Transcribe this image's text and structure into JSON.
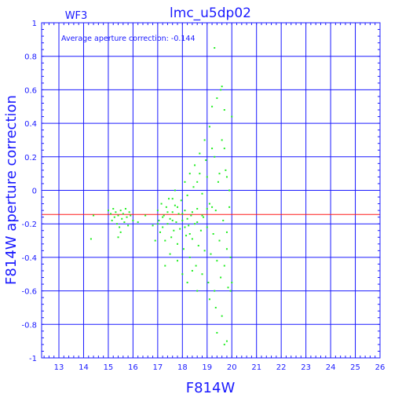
{
  "title": "lmc_u5dp02",
  "panel_label": "WF3",
  "annotation": "Average aperture correction: -0.144",
  "colors": {
    "axis": "#1a1aff",
    "points": "#22ee22",
    "average_line": "#ff1a1a",
    "background": "#ffffff"
  },
  "chart_data": {
    "type": "scatter",
    "title": "lmc_u5dp02",
    "xlabel": "F814W",
    "ylabel": "F814W aperture correction",
    "xlim": [
      12.3,
      26
    ],
    "ylim": [
      -1,
      1
    ],
    "x_ticks": [
      13,
      14,
      15,
      16,
      17,
      18,
      19,
      20,
      21,
      22,
      23,
      24,
      25,
      26
    ],
    "y_ticks": [
      -1,
      -0.8,
      -0.6,
      -0.4,
      -0.2,
      0,
      0.2,
      0.4,
      0.6,
      0.8,
      1
    ],
    "grid": true,
    "average_line": -0.144,
    "series": [
      {
        "points": [
          [
            14.3,
            -0.29
          ],
          [
            14.4,
            -0.15
          ],
          [
            15.0,
            -0.12
          ],
          [
            15.1,
            -0.14
          ],
          [
            15.15,
            -0.18
          ],
          [
            15.2,
            -0.11
          ],
          [
            15.25,
            -0.16
          ],
          [
            15.3,
            -0.13
          ],
          [
            15.35,
            -0.2
          ],
          [
            15.4,
            -0.15
          ],
          [
            15.45,
            -0.22
          ],
          [
            15.5,
            -0.12
          ],
          [
            15.55,
            -0.17
          ],
          [
            15.6,
            -0.14
          ],
          [
            15.65,
            -0.19
          ],
          [
            15.7,
            -0.11
          ],
          [
            15.75,
            -0.16
          ],
          [
            15.8,
            -0.21
          ],
          [
            15.85,
            -0.13
          ],
          [
            15.9,
            -0.15
          ],
          [
            16.0,
            -0.18
          ],
          [
            15.4,
            -0.28
          ],
          [
            15.5,
            -0.25
          ],
          [
            16.2,
            -0.19
          ],
          [
            16.5,
            -0.15
          ],
          [
            16.8,
            -0.21
          ],
          [
            17.0,
            -0.12
          ],
          [
            17.05,
            -0.18
          ],
          [
            17.1,
            -0.25
          ],
          [
            17.15,
            -0.08
          ],
          [
            17.2,
            -0.22
          ],
          [
            17.25,
            -0.15
          ],
          [
            17.3,
            -0.3
          ],
          [
            17.35,
            -0.1
          ],
          [
            17.4,
            -0.2
          ],
          [
            17.45,
            -0.05
          ],
          [
            17.5,
            -0.17
          ],
          [
            17.55,
            -0.28
          ],
          [
            17.6,
            -0.13
          ],
          [
            17.65,
            -0.24
          ],
          [
            17.7,
            -0.09
          ],
          [
            17.75,
            -0.19
          ],
          [
            17.8,
            -0.32
          ],
          [
            17.85,
            -0.14
          ],
          [
            17.9,
            -0.23
          ],
          [
            17.95,
            -0.06
          ],
          [
            18.0,
            -0.18
          ],
          [
            18.05,
            -0.35
          ],
          [
            18.1,
            -0.12
          ],
          [
            18.15,
            -0.27
          ],
          [
            18.2,
            -0.03
          ],
          [
            18.25,
            -0.21
          ],
          [
            18.3,
            -0.4
          ],
          [
            18.35,
            -0.15
          ],
          [
            18.4,
            -0.29
          ],
          [
            18.45,
            0.02
          ],
          [
            18.5,
            -0.2
          ],
          [
            18.55,
            -0.45
          ],
          [
            18.6,
            -0.11
          ],
          [
            18.65,
            -0.33
          ],
          [
            18.7,
            0.1
          ],
          [
            18.75,
            -0.24
          ],
          [
            18.8,
            -0.5
          ],
          [
            18.85,
            -0.16
          ],
          [
            18.9,
            -0.36
          ],
          [
            18.95,
            0.18
          ],
          [
            19.0,
            -0.22
          ],
          [
            19.05,
            -0.55
          ],
          [
            19.1,
            -0.08
          ],
          [
            19.15,
            -0.38
          ],
          [
            19.2,
            0.25
          ],
          [
            19.25,
            -0.26
          ],
          [
            19.3,
            -0.6
          ],
          [
            19.35,
            -0.12
          ],
          [
            19.4,
            -0.42
          ],
          [
            19.45,
            0.05
          ],
          [
            19.5,
            -0.3
          ],
          [
            19.55,
            -0.52
          ],
          [
            19.6,
            0.3
          ],
          [
            19.65,
            -0.18
          ],
          [
            19.7,
            -0.45
          ],
          [
            19.75,
            0.12
          ],
          [
            19.8,
            -0.35
          ],
          [
            19.85,
            -0.58
          ],
          [
            19.9,
            -0.1
          ],
          [
            19.95,
            -0.4
          ],
          [
            17.5,
            -0.38
          ],
          [
            17.8,
            -0.42
          ],
          [
            18.0,
            -0.5
          ],
          [
            18.2,
            -0.55
          ],
          [
            18.4,
            -0.48
          ],
          [
            18.6,
            -0.6
          ],
          [
            18.1,
            0.05
          ],
          [
            18.3,
            0.1
          ],
          [
            18.5,
            0.15
          ],
          [
            18.7,
            0.22
          ],
          [
            18.9,
            0.3
          ],
          [
            19.1,
            0.38
          ],
          [
            19.3,
            0.2
          ],
          [
            19.5,
            0.1
          ],
          [
            19.7,
            0.25
          ],
          [
            19.9,
            0.0
          ],
          [
            19.2,
            0.5
          ],
          [
            19.4,
            0.55
          ],
          [
            19.6,
            0.62
          ],
          [
            19.55,
            0.6
          ],
          [
            19.3,
            0.85
          ],
          [
            19.7,
            0.48
          ],
          [
            20.0,
            0.44
          ],
          [
            19.8,
            -0.25
          ],
          [
            19.1,
            -0.65
          ],
          [
            19.35,
            -0.7
          ],
          [
            19.6,
            -0.75
          ],
          [
            19.4,
            -0.85
          ],
          [
            19.7,
            -0.92
          ],
          [
            19.8,
            -0.9
          ],
          [
            20.0,
            -0.55
          ],
          [
            19.95,
            -0.6
          ],
          [
            17.3,
            -0.45
          ],
          [
            16.9,
            -0.3
          ],
          [
            17.0,
            -0.2
          ],
          [
            17.6,
            -0.05
          ],
          [
            17.7,
            0.0
          ],
          [
            18.8,
            -0.02
          ],
          [
            18.6,
            0.05
          ],
          [
            19.0,
            0.08
          ],
          [
            19.2,
            -0.1
          ],
          [
            19.8,
            0.08
          ],
          [
            18.0,
            -0.14
          ],
          [
            18.2,
            -0.17
          ],
          [
            18.4,
            -0.13
          ],
          [
            18.6,
            -0.19
          ],
          [
            18.8,
            -0.15
          ],
          [
            19.0,
            -0.11
          ],
          [
            17.2,
            -0.16
          ],
          [
            17.4,
            -0.13
          ],
          [
            17.6,
            -0.18
          ],
          [
            17.8,
            -0.1
          ],
          [
            18.1,
            -0.22
          ],
          [
            18.3,
            -0.26
          ]
        ]
      }
    ]
  }
}
